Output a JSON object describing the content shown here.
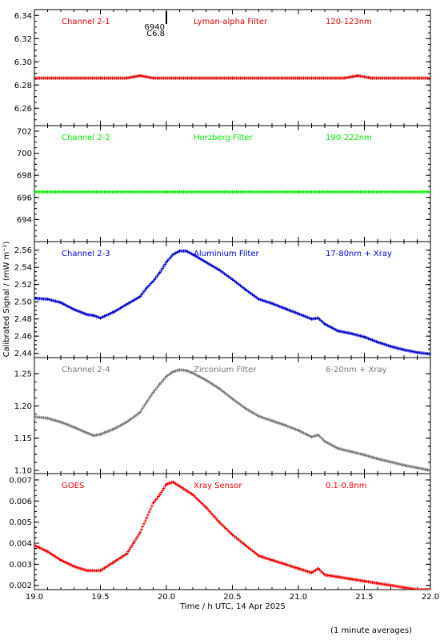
{
  "chart_data": {
    "type": "scatter",
    "x_range": [
      19.0,
      22.0
    ],
    "x_ticks": [
      "19.0",
      "19.5",
      "20.0",
      "20.5",
      "21.0",
      "21.5",
      "22.0"
    ],
    "xlabel": "Time / h UTC, 14 Apr 2025",
    "ylabel": "Calibrated Signal / (mW m⁻²)",
    "footnote": "(1 minute averages)",
    "marker_label_top": "6940",
    "marker_label_bottom": "C6.8",
    "marker_x": 20.0,
    "panels": [
      {
        "channel": "Channel 2-1",
        "filter": "Lyman-alpha Filter",
        "band": "120-123nm",
        "color": "#dd0000",
        "ylim": [
          6.245,
          6.345
        ],
        "y_ticks": [
          "6.26",
          "6.28",
          "6.30",
          "6.32",
          "6.34"
        ],
        "points": [
          [
            19.0,
            6.286
          ],
          [
            19.5,
            6.286
          ],
          [
            19.7,
            6.286
          ],
          [
            19.8,
            6.288
          ],
          [
            19.9,
            6.286
          ],
          [
            20.5,
            6.286
          ],
          [
            21.0,
            6.286
          ],
          [
            21.35,
            6.286
          ],
          [
            21.45,
            6.288
          ],
          [
            21.55,
            6.286
          ],
          [
            22.0,
            6.286
          ]
        ]
      },
      {
        "channel": "Channel 2-2",
        "filter": "Herzberg Filter",
        "band": "190-222nm",
        "color": "#00ee00",
        "ylim": [
          692.0,
          702.5
        ],
        "y_ticks": [
          "694",
          "696",
          "698",
          "700",
          "702"
        ],
        "points": [
          [
            19.0,
            696.5
          ],
          [
            20.0,
            696.5
          ],
          [
            21.0,
            696.5
          ],
          [
            22.0,
            696.5
          ]
        ]
      },
      {
        "channel": "Channel 2-3",
        "filter": "Aluminium Filter",
        "band": "17-80nm + Xray",
        "color": "#0000cc",
        "ylim": [
          2.435,
          2.57
        ],
        "y_ticks": [
          "2.44",
          "2.46",
          "2.48",
          "2.50",
          "2.52",
          "2.54",
          "2.56"
        ],
        "points": [
          [
            19.0,
            2.504
          ],
          [
            19.1,
            2.503
          ],
          [
            19.2,
            2.499
          ],
          [
            19.3,
            2.491
          ],
          [
            19.4,
            2.485
          ],
          [
            19.45,
            2.484
          ],
          [
            19.5,
            2.481
          ],
          [
            19.6,
            2.488
          ],
          [
            19.7,
            2.497
          ],
          [
            19.8,
            2.506
          ],
          [
            19.85,
            2.516
          ],
          [
            19.9,
            2.524
          ],
          [
            19.95,
            2.534
          ],
          [
            20.0,
            2.546
          ],
          [
            20.05,
            2.555
          ],
          [
            20.1,
            2.559
          ],
          [
            20.15,
            2.559
          ],
          [
            20.2,
            2.555
          ],
          [
            20.3,
            2.546
          ],
          [
            20.4,
            2.537
          ],
          [
            20.5,
            2.526
          ],
          [
            20.6,
            2.514
          ],
          [
            20.7,
            2.503
          ],
          [
            20.8,
            2.498
          ],
          [
            20.9,
            2.492
          ],
          [
            21.0,
            2.486
          ],
          [
            21.1,
            2.48
          ],
          [
            21.15,
            2.481
          ],
          [
            21.2,
            2.474
          ],
          [
            21.3,
            2.466
          ],
          [
            21.4,
            2.463
          ],
          [
            21.5,
            2.459
          ],
          [
            21.6,
            2.453
          ],
          [
            21.7,
            2.448
          ],
          [
            21.8,
            2.444
          ],
          [
            21.9,
            2.441
          ],
          [
            22.0,
            2.439
          ]
        ]
      },
      {
        "channel": "Channel 2-4",
        "filter": "Zirconium Filter",
        "band": "6-20nm + Xray",
        "color": "#777777",
        "ylim": [
          1.095,
          1.275
        ],
        "y_ticks": [
          "1.10",
          "1.15",
          "1.20",
          "1.25"
        ],
        "points": [
          [
            19.0,
            1.183
          ],
          [
            19.1,
            1.181
          ],
          [
            19.2,
            1.175
          ],
          [
            19.3,
            1.167
          ],
          [
            19.4,
            1.158
          ],
          [
            19.45,
            1.154
          ],
          [
            19.5,
            1.156
          ],
          [
            19.6,
            1.164
          ],
          [
            19.7,
            1.175
          ],
          [
            19.8,
            1.19
          ],
          [
            19.85,
            1.206
          ],
          [
            19.9,
            1.221
          ],
          [
            19.95,
            1.234
          ],
          [
            20.0,
            1.246
          ],
          [
            20.05,
            1.253
          ],
          [
            20.1,
            1.256
          ],
          [
            20.15,
            1.255
          ],
          [
            20.2,
            1.251
          ],
          [
            20.3,
            1.24
          ],
          [
            20.4,
            1.227
          ],
          [
            20.5,
            1.211
          ],
          [
            20.6,
            1.196
          ],
          [
            20.7,
            1.184
          ],
          [
            20.8,
            1.177
          ],
          [
            20.9,
            1.17
          ],
          [
            21.0,
            1.162
          ],
          [
            21.1,
            1.152
          ],
          [
            21.15,
            1.155
          ],
          [
            21.2,
            1.145
          ],
          [
            21.3,
            1.134
          ],
          [
            21.4,
            1.129
          ],
          [
            21.5,
            1.124
          ],
          [
            21.6,
            1.118
          ],
          [
            21.7,
            1.113
          ],
          [
            21.8,
            1.108
          ],
          [
            21.9,
            1.104
          ],
          [
            22.0,
            1.1
          ]
        ]
      },
      {
        "channel": "GOES",
        "filter": "Xray Sensor",
        "band": "0.1-0.8nm",
        "color": "#ee0000",
        "ylim": [
          0.0018,
          0.0073
        ],
        "y_ticks": [
          "0.002",
          "0.003",
          "0.004",
          "0.005",
          "0.006",
          "0.007"
        ],
        "points": [
          [
            19.0,
            0.0039
          ],
          [
            19.1,
            0.0036
          ],
          [
            19.2,
            0.0032
          ],
          [
            19.3,
            0.0029
          ],
          [
            19.4,
            0.0027
          ],
          [
            19.5,
            0.0027
          ],
          [
            19.6,
            0.0031
          ],
          [
            19.7,
            0.0035
          ],
          [
            19.75,
            0.004
          ],
          [
            19.8,
            0.0045
          ],
          [
            19.85,
            0.0052
          ],
          [
            19.9,
            0.0059
          ],
          [
            19.95,
            0.0063
          ],
          [
            20.0,
            0.0068
          ],
          [
            20.05,
            0.0069
          ],
          [
            20.1,
            0.0067
          ],
          [
            20.2,
            0.0063
          ],
          [
            20.3,
            0.0057
          ],
          [
            20.4,
            0.005
          ],
          [
            20.5,
            0.0044
          ],
          [
            20.6,
            0.0039
          ],
          [
            20.7,
            0.0034
          ],
          [
            20.8,
            0.0032
          ],
          [
            20.9,
            0.003
          ],
          [
            21.0,
            0.0028
          ],
          [
            21.1,
            0.0026
          ],
          [
            21.15,
            0.0028
          ],
          [
            21.2,
            0.0025
          ],
          [
            21.3,
            0.0024
          ],
          [
            21.4,
            0.0023
          ],
          [
            21.5,
            0.0022
          ],
          [
            21.6,
            0.0021
          ],
          [
            21.7,
            0.002
          ],
          [
            21.8,
            0.0019
          ],
          [
            21.9,
            0.0018
          ],
          [
            22.0,
            0.0018
          ]
        ]
      }
    ]
  }
}
